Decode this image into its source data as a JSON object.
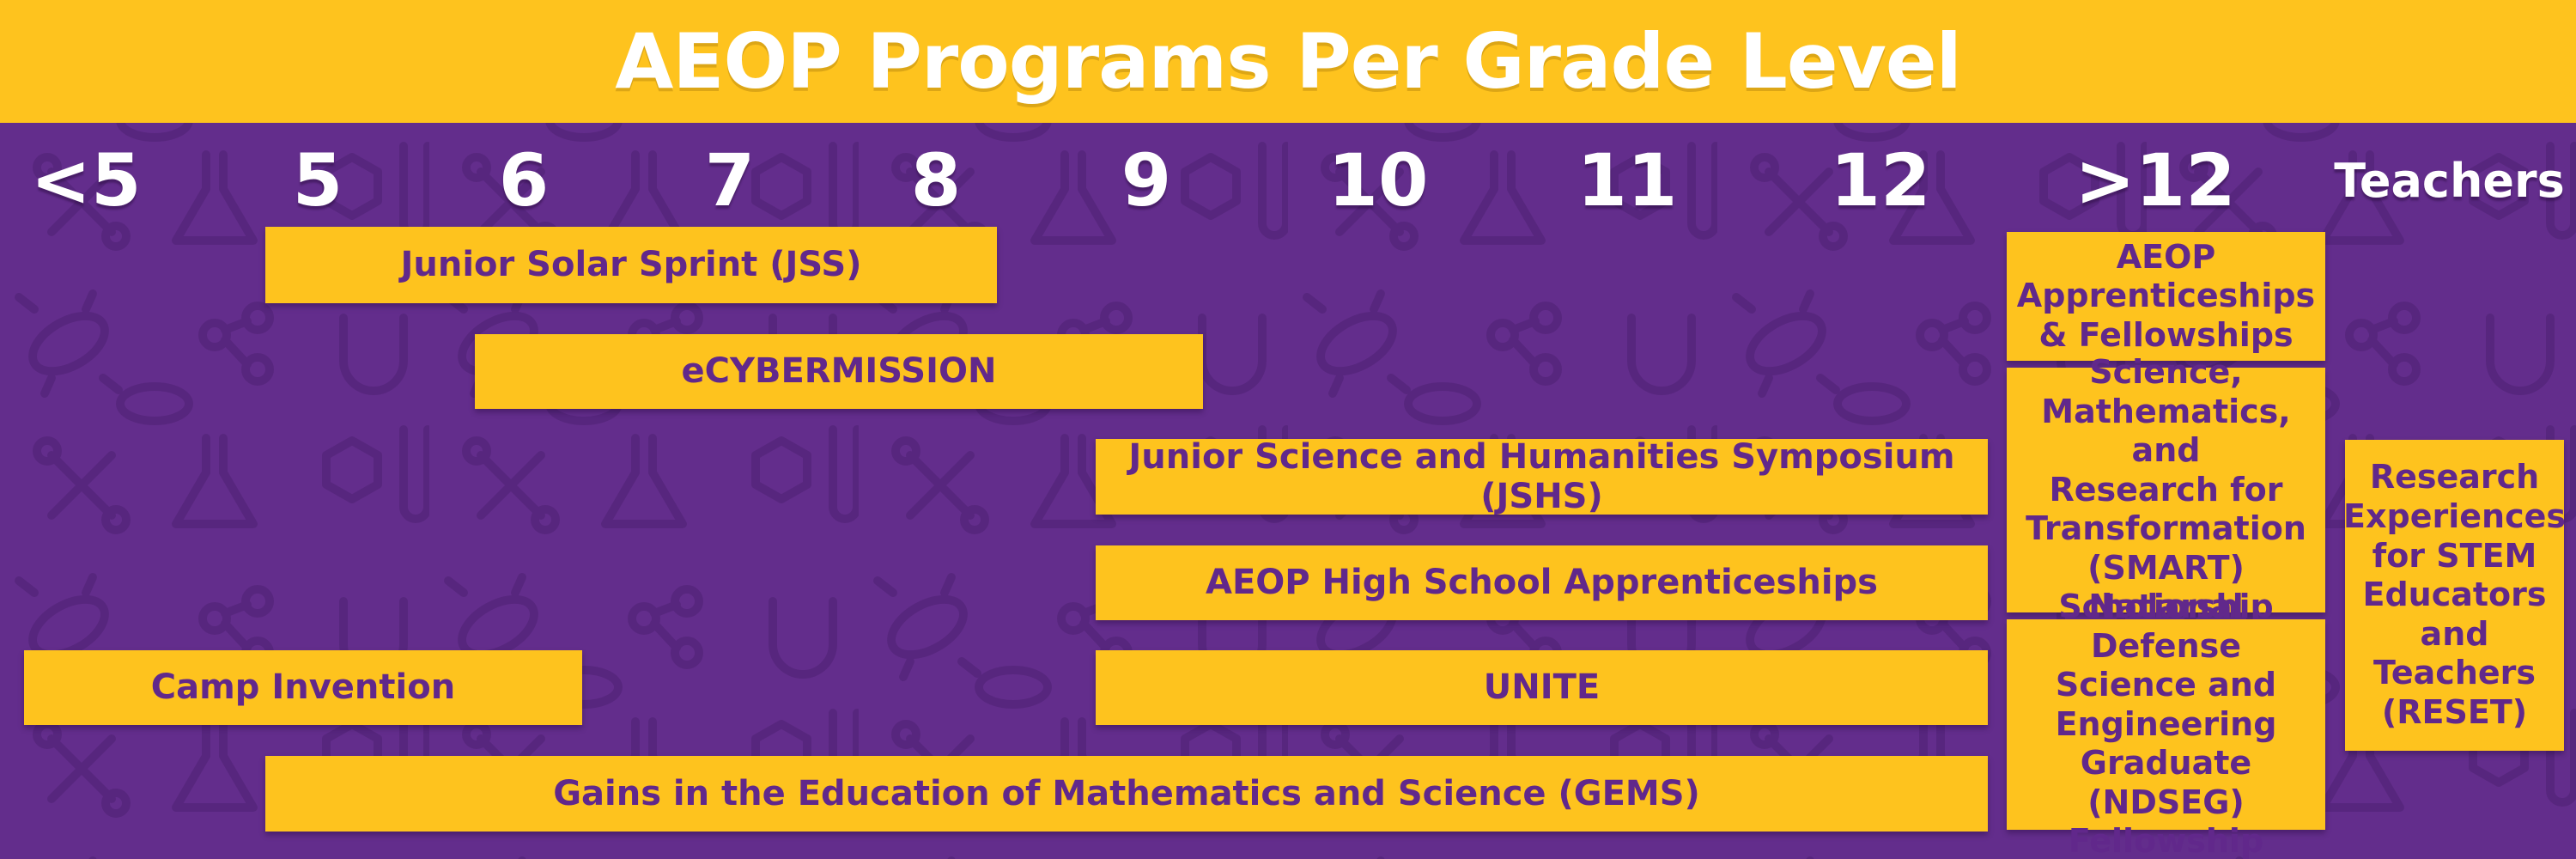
{
  "title": "AEOP Programs Per Grade Level",
  "colors": {
    "background": "#632d8c",
    "accent": "#fec31e",
    "label_text": "#61288b",
    "header_text": "#ffffff"
  },
  "columns": [
    "<5",
    "5",
    "6",
    "7",
    "8",
    "9",
    "10",
    "11",
    "12",
    ">12",
    "Teachers"
  ],
  "programs": {
    "jss": "Junior Solar Sprint (JSS)",
    "ecybermission": "eCYBERMISSION",
    "jshs": "Junior Science and Humanities Symposium (JSHS)",
    "high_school_apprenticeships": "AEOP High School Apprenticeships",
    "camp_invention": "Camp Invention",
    "unite": "UNITE",
    "gems": "Gains in the Education of Mathematics and Science (GEMS)",
    "apprenticeships_fellowships": [
      "AEOP",
      "Apprenticeships",
      "& Fellowships"
    ],
    "smart": [
      "Science,",
      "Mathematics, and",
      "Research for",
      "Transformation",
      "(SMART)",
      "Scholarship"
    ],
    "ndseg": [
      "National Defense",
      "Science and",
      "Engineering",
      "Graduate (NDSEG)",
      "Fellowship"
    ],
    "reset": [
      "Research",
      "Experiences",
      "for STEM",
      "Educators",
      "and",
      "Teachers",
      "(RESET)"
    ]
  },
  "background_icons": [
    "bacteria-icon",
    "microscope-icon",
    "flask-icon",
    "magnet-icon",
    "molecule-icon",
    "wrench-icon",
    "test-tube-icon",
    "dna-icon",
    "robot-icon",
    "petri-dish-icon",
    "graph-icon"
  ]
}
